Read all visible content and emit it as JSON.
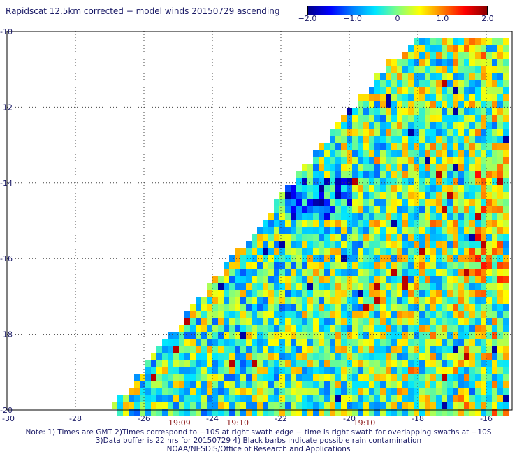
{
  "title": "Rapidscat 12.5km corrected − model winds 20150729 ascending",
  "colorbar": {
    "min": -2.0,
    "max": 2.0,
    "ticks": [
      {
        "value": -2.0,
        "label": "−2.0"
      },
      {
        "value": -1.0,
        "label": "−1.0"
      },
      {
        "value": 0,
        "label": "0"
      },
      {
        "value": 1.0,
        "label": "1.0"
      },
      {
        "value": 2.0,
        "label": "2.0"
      }
    ],
    "colors": [
      "#00008b",
      "#0000ff",
      "#0080ff",
      "#00e5ff",
      "#80ff80",
      "#ffff00",
      "#ff8000",
      "#ff0000",
      "#8b0000"
    ]
  },
  "map": {
    "lon_range": [
      -30,
      -15
    ],
    "lat_range": [
      -20,
      -10
    ],
    "lat_ticks": [
      {
        "value": -10,
        "label": "-10"
      },
      {
        "value": -12,
        "label": "-12"
      },
      {
        "value": -14,
        "label": "-14"
      },
      {
        "value": -16,
        "label": "-16"
      },
      {
        "value": -18,
        "label": "-18"
      },
      {
        "value": -20,
        "label": "-20"
      }
    ],
    "lon_ticks": [
      {
        "value": -30,
        "label": "-30"
      },
      {
        "value": -28,
        "label": "-28"
      },
      {
        "value": -26,
        "label": "-26"
      },
      {
        "value": -24,
        "label": "-24"
      },
      {
        "value": -22,
        "label": "-22"
      },
      {
        "value": -20,
        "label": "-20"
      },
      {
        "value": -18,
        "label": "-18"
      },
      {
        "value": -16,
        "label": "-16"
      }
    ],
    "time_labels": [
      {
        "lon": -25.0,
        "label": "19:09"
      },
      {
        "lon": -23.3,
        "label": "19:10"
      },
      {
        "lon": -19.6,
        "label": "19:10"
      }
    ],
    "swath_edge": [
      [
        -26.9,
        -20
      ],
      [
        -19.5,
        -11.6
      ],
      [
        -17.8,
        -10
      ]
    ],
    "grid_cell_deg": 0.125
  },
  "notes": [
    "Note: 1) Times are GMT 2)Times correspond to −10S at right swath edge − time is right swath for overlapping swaths at −10S",
    "3)Data buffer is 22 hrs for 20150729 4) Black barbs indicate possible rain contamination",
    "NOAA/NESDIS/Office of Research and Applications"
  ]
}
